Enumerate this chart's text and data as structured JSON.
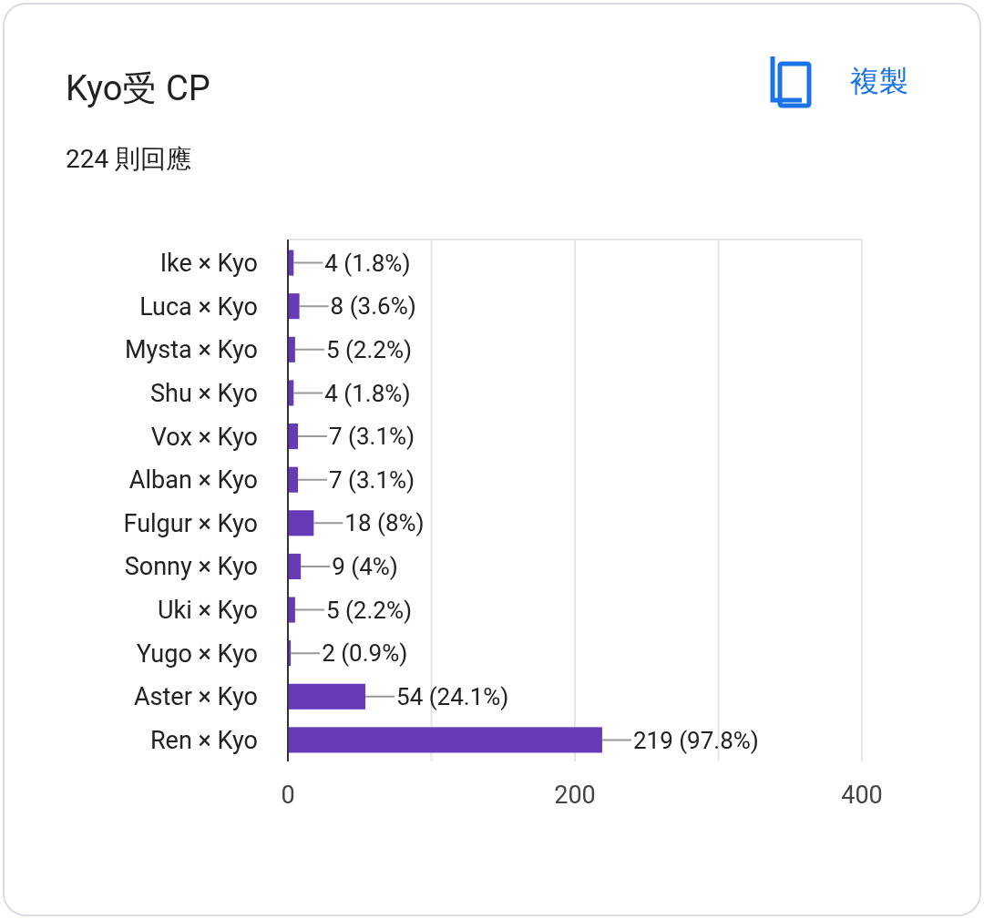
{
  "chart_data": {
    "type": "bar",
    "orientation": "horizontal",
    "title": "Kyo受 CP",
    "subtitle": "224 則回應",
    "annotations": [
      "複製"
    ],
    "categories": [
      "Ike × Kyo",
      "Luca × Kyo",
      "Mysta × Kyo",
      "Shu × Kyo",
      "Vox × Kyo",
      "Alban × Kyo",
      "Fulgur × Kyo",
      "Sonny × Kyo",
      "Uki × Kyo",
      "Yugo × Kyo",
      "Aster × Kyo",
      "Ren × Kyo"
    ],
    "values": [
      4,
      8,
      5,
      4,
      7,
      7,
      18,
      9,
      5,
      2,
      54,
      219
    ],
    "value_labels": [
      "4 (1.8%)",
      "8 (3.6%)",
      "5 (2.2%)",
      "4 (1.8%)",
      "7 (3.1%)",
      "7 (3.1%)",
      "18 (8%)",
      "9 (4%)",
      "5 (2.2%)",
      "2 (0.9%)",
      "54 (24.1%)",
      "219 (97.8%)"
    ],
    "color": "#673ab7",
    "xlim": [
      0,
      400
    ],
    "xticks": [
      0,
      {
        "value": 100,
        "label": null
      },
      200,
      {
        "value": 300,
        "label": null
      },
      400
    ],
    "grid": "x"
  }
}
